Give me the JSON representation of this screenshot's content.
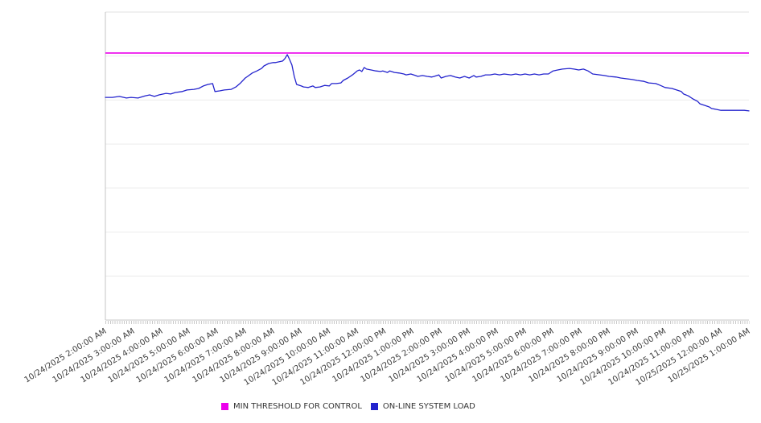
{
  "chart_data": {
    "type": "line",
    "title": "",
    "xlabel": "",
    "ylabel": "",
    "y_axis": {
      "labels_visible": false,
      "unit": "relative load (0-100, unlabeled axis)",
      "range": [
        0,
        100
      ],
      "gridlines": true
    },
    "x_axis": {
      "start": "10/24/2025 2:00:00 AM",
      "end": "10/25/2025 1:00:00 AM",
      "range_minutes": [
        0,
        1380
      ],
      "minor_tick_interval_minutes": 5,
      "major_label_interval_minutes": 60,
      "tick_labels": [
        "10/24/2025 2:00:00 AM",
        "10/24/2025 3:00:00 AM",
        "10/24/2025 4:00:00 AM",
        "10/24/2025 5:00:00 AM",
        "10/24/2025 6:00:00 AM",
        "10/24/2025 7:00:00 AM",
        "10/24/2025 8:00:00 AM",
        "10/24/2025 9:00:00 AM",
        "10/24/2025 10:00:00 AM",
        "10/24/2025 11:00:00 AM",
        "10/24/2025 12:00:00 PM",
        "10/24/2025 1:00:00 PM",
        "10/24/2025 2:00:00 PM",
        "10/24/2025 3:00:00 PM",
        "10/24/2025 4:00:00 PM",
        "10/24/2025 5:00:00 PM",
        "10/24/2025 6:00:00 PM",
        "10/24/2025 7:00:00 PM",
        "10/24/2025 8:00:00 PM",
        "10/24/2025 9:00:00 PM",
        "10/24/2025 10:00:00 PM",
        "10/24/2025 11:00:00 PM",
        "10/25/2025 12:00:00 AM",
        "10/25/2025 1:00:00 AM"
      ]
    },
    "legend_position": "bottom-center",
    "series": [
      {
        "name": "MIN THRESHOLD FOR CONTROL",
        "color": "#ec00ec",
        "style": "horizontal-threshold-line",
        "value": 86.7
      },
      {
        "name": "ON-LINE SYSTEM LOAD",
        "color": "#2323cd",
        "style": "line",
        "points_format": "[minutes since 10/24/2025 2:00:00 AM, relative value 0-100]",
        "points": [
          [
            0,
            72.3
          ],
          [
            15,
            72.3
          ],
          [
            30,
            72.6
          ],
          [
            45,
            72.1
          ],
          [
            55,
            72.3
          ],
          [
            70,
            72.1
          ],
          [
            85,
            72.8
          ],
          [
            95,
            73.1
          ],
          [
            105,
            72.6
          ],
          [
            115,
            73.1
          ],
          [
            130,
            73.6
          ],
          [
            140,
            73.4
          ],
          [
            150,
            73.9
          ],
          [
            165,
            74.2
          ],
          [
            175,
            74.7
          ],
          [
            190,
            74.9
          ],
          [
            200,
            75.2
          ],
          [
            210,
            76.0
          ],
          [
            220,
            76.5
          ],
          [
            230,
            76.8
          ],
          [
            235,
            74.2
          ],
          [
            245,
            74.4
          ],
          [
            255,
            74.7
          ],
          [
            270,
            74.9
          ],
          [
            280,
            75.7
          ],
          [
            290,
            77.0
          ],
          [
            300,
            78.6
          ],
          [
            305,
            79.1
          ],
          [
            315,
            80.2
          ],
          [
            325,
            80.9
          ],
          [
            335,
            81.7
          ],
          [
            340,
            82.5
          ],
          [
            350,
            83.3
          ],
          [
            360,
            83.6
          ],
          [
            365,
            83.6
          ],
          [
            380,
            84.1
          ],
          [
            385,
            84.9
          ],
          [
            390,
            86.2
          ],
          [
            395,
            84.6
          ],
          [
            400,
            82.8
          ],
          [
            405,
            79.1
          ],
          [
            410,
            76.5
          ],
          [
            420,
            76.0
          ],
          [
            425,
            75.7
          ],
          [
            435,
            75.5
          ],
          [
            445,
            76.0
          ],
          [
            450,
            75.5
          ],
          [
            460,
            75.7
          ],
          [
            470,
            76.2
          ],
          [
            480,
            76.0
          ],
          [
            485,
            76.8
          ],
          [
            495,
            76.8
          ],
          [
            505,
            77.0
          ],
          [
            510,
            77.8
          ],
          [
            520,
            78.6
          ],
          [
            530,
            79.6
          ],
          [
            540,
            80.9
          ],
          [
            545,
            81.2
          ],
          [
            550,
            80.7
          ],
          [
            555,
            82.0
          ],
          [
            560,
            81.5
          ],
          [
            570,
            81.2
          ],
          [
            580,
            80.9
          ],
          [
            590,
            80.7
          ],
          [
            595,
            80.9
          ],
          [
            605,
            80.4
          ],
          [
            610,
            80.9
          ],
          [
            620,
            80.4
          ],
          [
            630,
            80.2
          ],
          [
            640,
            79.9
          ],
          [
            645,
            79.6
          ],
          [
            655,
            79.9
          ],
          [
            665,
            79.4
          ],
          [
            670,
            79.1
          ],
          [
            680,
            79.4
          ],
          [
            690,
            79.1
          ],
          [
            700,
            78.9
          ],
          [
            705,
            79.1
          ],
          [
            715,
            79.6
          ],
          [
            720,
            78.6
          ],
          [
            730,
            79.1
          ],
          [
            740,
            79.4
          ],
          [
            750,
            78.9
          ],
          [
            760,
            78.6
          ],
          [
            770,
            79.1
          ],
          [
            780,
            78.6
          ],
          [
            790,
            79.4
          ],
          [
            795,
            78.9
          ],
          [
            805,
            79.1
          ],
          [
            815,
            79.6
          ],
          [
            825,
            79.6
          ],
          [
            835,
            79.9
          ],
          [
            845,
            79.6
          ],
          [
            855,
            79.9
          ],
          [
            870,
            79.6
          ],
          [
            880,
            79.9
          ],
          [
            890,
            79.6
          ],
          [
            900,
            79.9
          ],
          [
            910,
            79.6
          ],
          [
            920,
            79.9
          ],
          [
            930,
            79.6
          ],
          [
            940,
            79.9
          ],
          [
            950,
            79.9
          ],
          [
            960,
            80.9
          ],
          [
            970,
            81.2
          ],
          [
            980,
            81.5
          ],
          [
            995,
            81.7
          ],
          [
            1005,
            81.5
          ],
          [
            1015,
            81.2
          ],
          [
            1025,
            81.5
          ],
          [
            1035,
            80.9
          ],
          [
            1045,
            79.9
          ],
          [
            1060,
            79.6
          ],
          [
            1070,
            79.4
          ],
          [
            1080,
            79.1
          ],
          [
            1095,
            78.9
          ],
          [
            1105,
            78.6
          ],
          [
            1120,
            78.3
          ],
          [
            1130,
            78.1
          ],
          [
            1140,
            77.8
          ],
          [
            1155,
            77.5
          ],
          [
            1165,
            77.0
          ],
          [
            1180,
            76.8
          ],
          [
            1190,
            76.2
          ],
          [
            1200,
            75.5
          ],
          [
            1215,
            75.2
          ],
          [
            1225,
            74.7
          ],
          [
            1235,
            74.2
          ],
          [
            1240,
            73.4
          ],
          [
            1250,
            72.8
          ],
          [
            1260,
            71.8
          ],
          [
            1270,
            71.0
          ],
          [
            1275,
            70.2
          ],
          [
            1285,
            69.7
          ],
          [
            1295,
            69.2
          ],
          [
            1300,
            68.7
          ],
          [
            1310,
            68.4
          ],
          [
            1320,
            68.1
          ],
          [
            1330,
            68.1
          ],
          [
            1335,
            68.1
          ],
          [
            1345,
            68.1
          ],
          [
            1355,
            68.1
          ],
          [
            1365,
            68.1
          ],
          [
            1370,
            68.1
          ],
          [
            1380,
            67.9
          ]
        ]
      }
    ]
  },
  "legend": {
    "items": [
      {
        "label": "MIN THRESHOLD FOR CONTROL",
        "color": "#ec00ec"
      },
      {
        "label": "ON-LINE SYSTEM LOAD",
        "color": "#2323cd"
      }
    ]
  },
  "colors": {
    "background": "#ffffff",
    "gridline": "#ececec",
    "plot_top_border": "#e0e0e0",
    "axis_line": "#c4c4c4",
    "tick": "#c9c9c9",
    "label_text": "#3d3d3d",
    "threshold_line": "#ec00ec",
    "load_line": "#2323cd"
  }
}
